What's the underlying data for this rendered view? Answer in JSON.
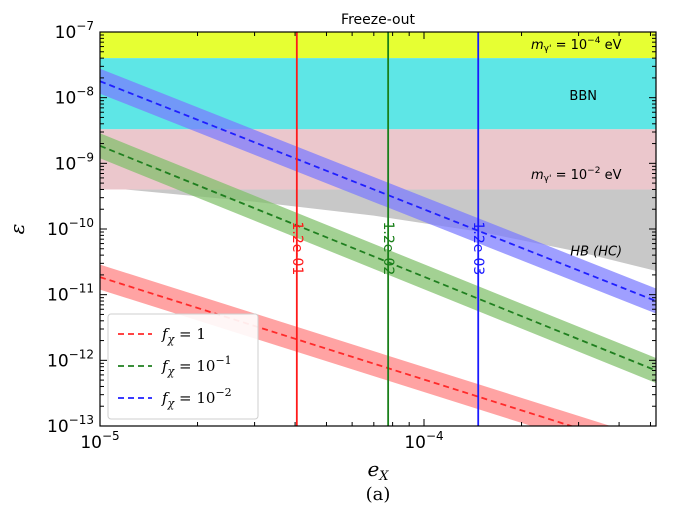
{
  "chart_data": {
    "type": "line",
    "title": "Freeze-out",
    "caption": "(a)",
    "xlabel": "e",
    "xlabel_sub": "X",
    "ylabel": "ε",
    "xscale": "log",
    "yscale": "log",
    "xlim": [
      1e-05,
      0.00052
    ],
    "ylim": [
      1e-13,
      1e-07
    ],
    "x_ticks": [
      {
        "value": 1e-05,
        "base": "10",
        "exp": "−5"
      },
      {
        "value": 0.0001,
        "base": "10",
        "exp": "−4"
      }
    ],
    "y_ticks": [
      {
        "value": 1e-07,
        "base": "10",
        "exp": "−7"
      },
      {
        "value": 1e-08,
        "base": "10",
        "exp": "−8"
      },
      {
        "value": 1e-09,
        "base": "10",
        "exp": "−9"
      },
      {
        "value": 1e-10,
        "base": "10",
        "exp": "−10"
      },
      {
        "value": 1e-11,
        "base": "10",
        "exp": "−11"
      },
      {
        "value": 1e-12,
        "base": "10",
        "exp": "−12"
      },
      {
        "value": 1e-13,
        "base": "10",
        "exp": "−13"
      }
    ],
    "regions": [
      {
        "name": "yellow",
        "color": "#e6ff33",
        "y_lo": 4e-08,
        "y_hi": 1e-07
      },
      {
        "name": "cyan",
        "color": "#5ee6e6",
        "y_lo": 3.3e-09,
        "y_hi": 4e-08
      },
      {
        "name": "pink",
        "color": "#ebc7cc",
        "y_lo": 4e-10,
        "y_hi": 3.3e-09
      }
    ],
    "region_labels": [
      {
        "text_main": "m",
        "text_sub": "γ'",
        "text_rest": " = 10",
        "text_exp": "−4",
        "text_unit": " eV",
        "x": 0.000295,
        "y": 6.3e-08
      },
      {
        "text": "BBN",
        "x": 0.00031,
        "y": 1.05e-08
      },
      {
        "text_main": "m",
        "text_sub": "γ'",
        "text_rest": " = 10",
        "text_exp": "−2",
        "text_unit": " eV",
        "x": 0.000295,
        "y": 6.6e-10
      },
      {
        "text": "HB (HC)",
        "x": 0.00034,
        "y": 4.5e-11
      }
    ],
    "hb_region": {
      "color": "#c8c8c8",
      "upper": [
        [
          1e-05,
          4e-10
        ],
        [
          0.00052,
          4e-10
        ]
      ],
      "lower": [
        [
          1.2e-05,
          4e-10
        ],
        [
          3e-05,
          2.6e-10
        ],
        [
          7e-05,
          1.6e-10
        ],
        [
          0.00015,
          9e-11
        ],
        [
          0.0003,
          4.5e-11
        ],
        [
          0.00052,
          2.3e-11
        ]
      ]
    },
    "series": [
      {
        "name_main": "f",
        "name_sub": "χ",
        "name_rest": " = 1",
        "name_exp": "",
        "color": "#ff2a2a",
        "band_color": "#ff8080",
        "x": [
          1e-05,
          0.00052
        ],
        "y": [
          1.85e-11,
          3.9e-14
        ],
        "band_factor": 1.55
      },
      {
        "name_main": "f",
        "name_sub": "χ",
        "name_rest": " = 10",
        "name_exp": "−1",
        "color": "#1f7f1f",
        "band_color": "#7fbf6a",
        "x": [
          1e-05,
          0.00052
        ],
        "y": [
          1.85e-09,
          7e-13
        ],
        "band_factor": 1.55
      },
      {
        "name_main": "f",
        "name_sub": "χ",
        "name_rest": " = 10",
        "name_exp": "−2",
        "color": "#1f1fff",
        "band_color": "#7a7aff",
        "x": [
          1e-05,
          0.00052
        ],
        "y": [
          1.78e-08,
          8e-12
        ],
        "band_factor": 1.55
      }
    ],
    "vertical_lines": [
      {
        "x": 4.05e-05,
        "color": "#ff1a1a",
        "label": "1.2e-01"
      },
      {
        "x": 7.75e-05,
        "color": "#1a801a",
        "label": "1.2e-02"
      },
      {
        "x": 0.000147,
        "color": "#1a1aff",
        "label": "1.2e-03"
      }
    ],
    "legend": {
      "placement": "bottom-left"
    }
  }
}
